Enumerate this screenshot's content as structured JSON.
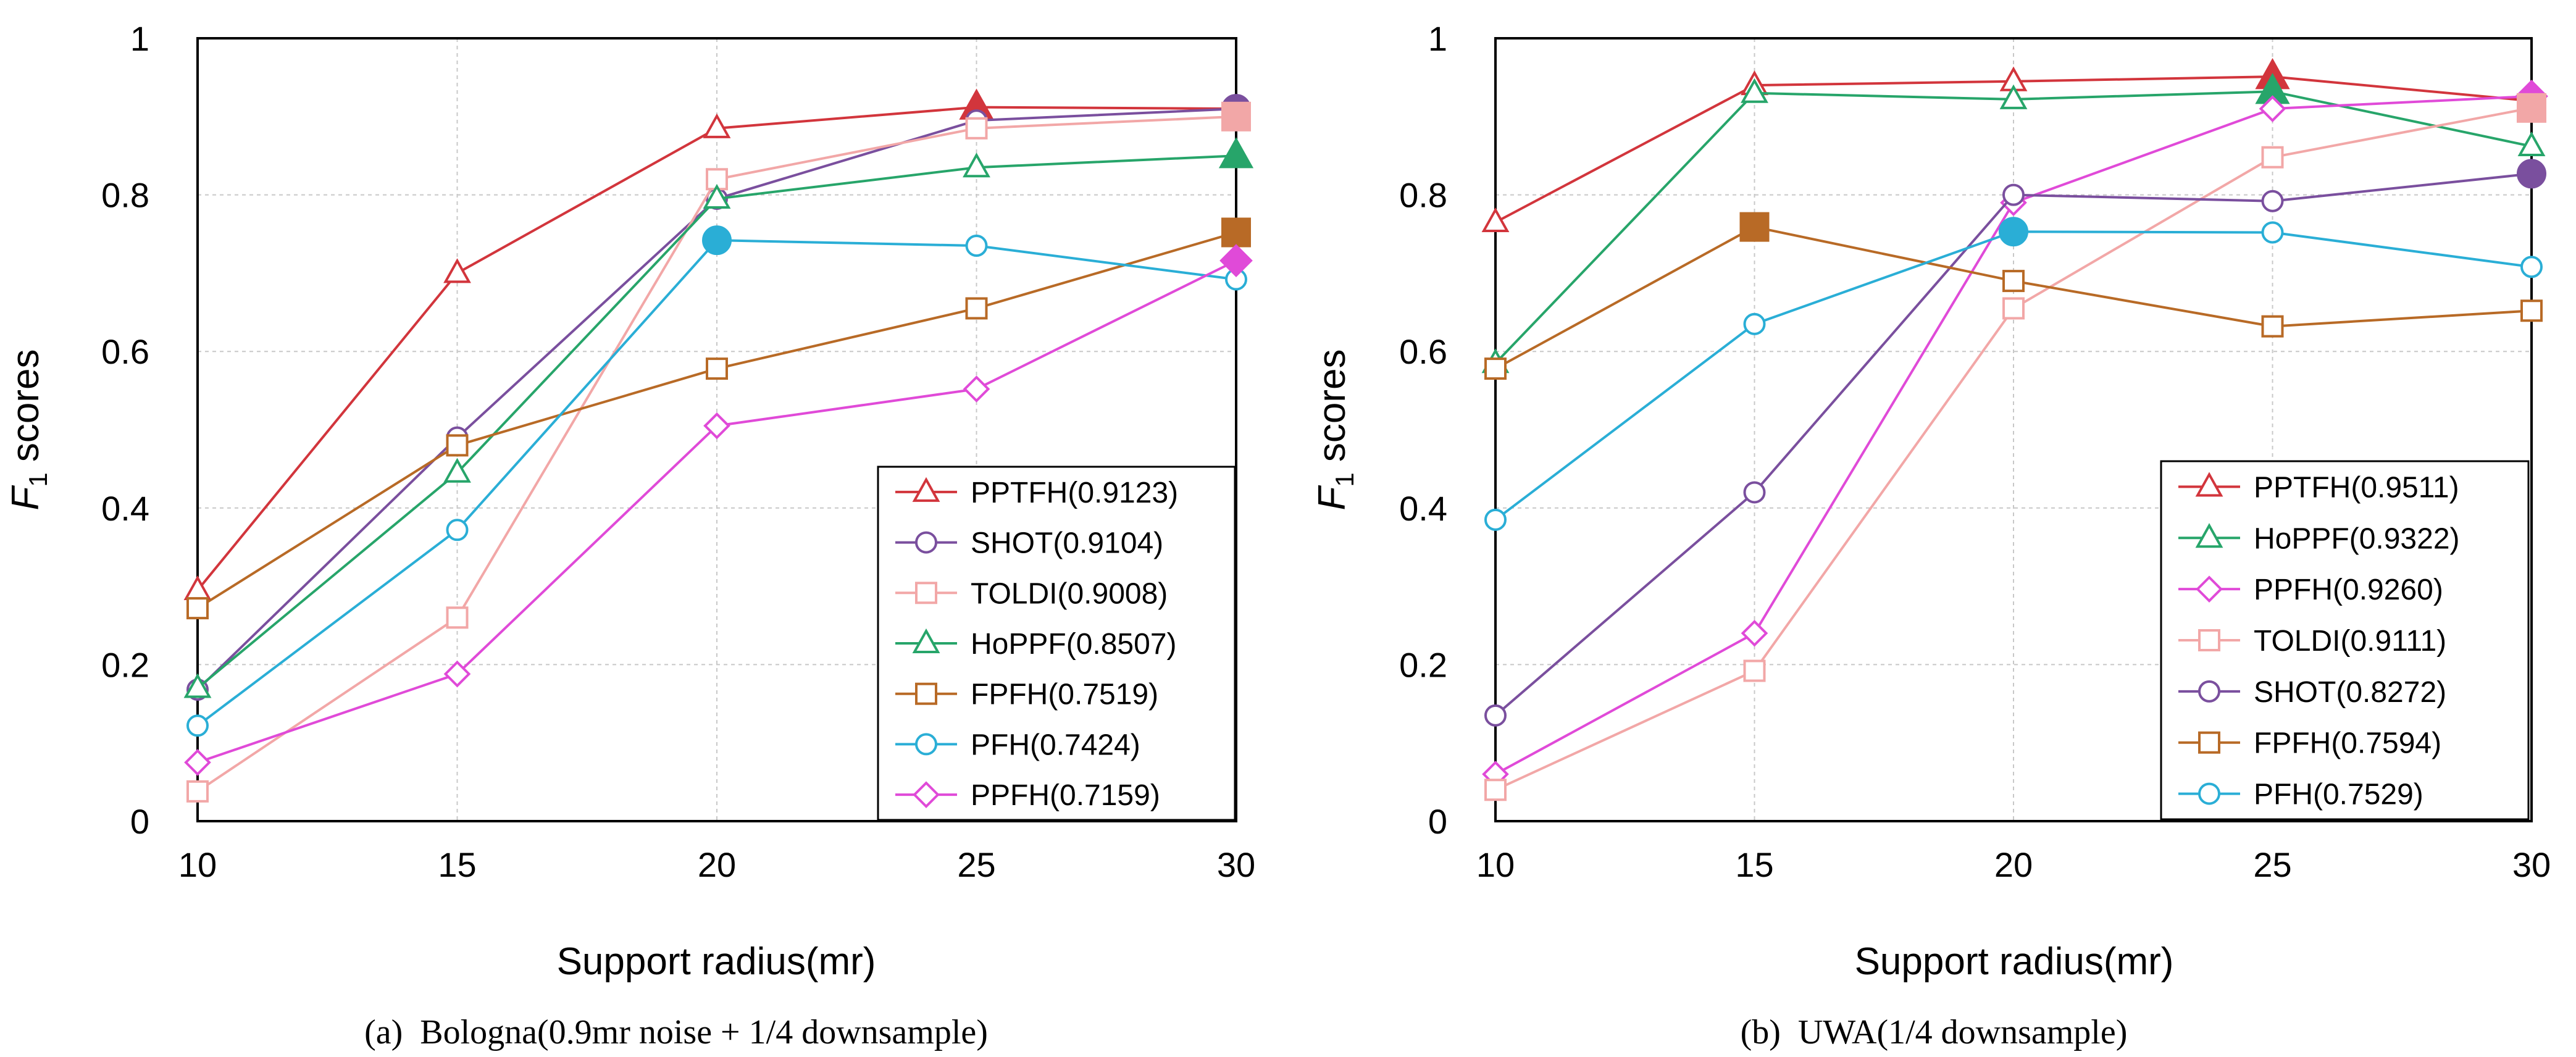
{
  "figure": {
    "panel_a_caption": "(a)  Bologna(0.9mr noise + 1/4 downsample)",
    "panel_b_caption": "(b)  UWA(1/4 downsample)"
  },
  "chart_data": [
    {
      "type": "line",
      "title": "",
      "xlabel": "Support radius(mr)",
      "ylabel_prefix": "F",
      "ylabel_sub": "1",
      "ylabel_suffix": " scores",
      "x": [
        10,
        15,
        20,
        25,
        30
      ],
      "xlim": [
        10,
        30
      ],
      "ylim": [
        0,
        1
      ],
      "xticks": [
        10,
        15,
        20,
        25,
        30
      ],
      "yticks": [
        0,
        0.2,
        0.4,
        0.6,
        0.8,
        1
      ],
      "ytick_labels": [
        "0",
        "0.2",
        "0.4",
        "0.6",
        "0.8",
        "1"
      ],
      "grid": true,
      "legend_position": "bottom-right",
      "series": [
        {
          "name": "PPTFH(0.9123)",
          "marker": "triangle",
          "color": "#d2353c",
          "best_index": 3,
          "values": [
            0.295,
            0.7,
            0.885,
            0.912,
            0.91
          ]
        },
        {
          "name": "SHOT(0.9104)",
          "marker": "circle",
          "color": "#7a4f9e",
          "best_index": 4,
          "values": [
            0.168,
            0.49,
            0.795,
            0.895,
            0.91
          ]
        },
        {
          "name": "TOLDI(0.9008)",
          "marker": "square",
          "color": "#f2a7a7",
          "best_index": 4,
          "values": [
            0.038,
            0.26,
            0.82,
            0.885,
            0.9
          ]
        },
        {
          "name": "HoPPF(0.8507)",
          "marker": "triangle",
          "color": "#27a56a",
          "best_index": 4,
          "values": [
            0.17,
            0.445,
            0.795,
            0.835,
            0.85
          ]
        },
        {
          "name": "FPFH(0.7519)",
          "marker": "square",
          "color": "#b86a26",
          "best_index": 4,
          "values": [
            0.272,
            0.48,
            0.578,
            0.655,
            0.752
          ]
        },
        {
          "name": "PFH(0.7424)",
          "marker": "circle",
          "color": "#2aaed6",
          "best_index": 2,
          "values": [
            0.122,
            0.372,
            0.742,
            0.735,
            0.692
          ]
        },
        {
          "name": "PPFH(0.7159)",
          "marker": "diamond",
          "color": "#e04ad8",
          "best_index": 4,
          "values": [
            0.075,
            0.188,
            0.505,
            0.552,
            0.716
          ]
        }
      ]
    },
    {
      "type": "line",
      "title": "",
      "xlabel": "Support radius(mr)",
      "ylabel_prefix": "F",
      "ylabel_sub": "1",
      "ylabel_suffix": " scores",
      "x": [
        10,
        15,
        20,
        25,
        30
      ],
      "xlim": [
        10,
        30
      ],
      "ylim": [
        0,
        1
      ],
      "xticks": [
        10,
        15,
        20,
        25,
        30
      ],
      "yticks": [
        0,
        0.2,
        0.4,
        0.6,
        0.8,
        1
      ],
      "ytick_labels": [
        "0",
        "0.2",
        "0.4",
        "0.6",
        "0.8",
        "1"
      ],
      "grid": true,
      "legend_position": "bottom-right",
      "series": [
        {
          "name": "PPTFH(0.9511)",
          "marker": "triangle",
          "color": "#d2353c",
          "best_index": 3,
          "values": [
            0.765,
            0.94,
            0.945,
            0.951,
            0.92
          ]
        },
        {
          "name": "HoPPF(0.9322)",
          "marker": "triangle",
          "color": "#27a56a",
          "best_index": 3,
          "values": [
            0.585,
            0.93,
            0.922,
            0.932,
            0.862
          ]
        },
        {
          "name": "PPFH(0.9260)",
          "marker": "diamond",
          "color": "#e04ad8",
          "best_index": 4,
          "values": [
            0.06,
            0.24,
            0.79,
            0.91,
            0.926
          ]
        },
        {
          "name": "TOLDI(0.9111)",
          "marker": "square",
          "color": "#f2a7a7",
          "best_index": 4,
          "values": [
            0.04,
            0.192,
            0.655,
            0.848,
            0.911
          ]
        },
        {
          "name": "SHOT(0.8272)",
          "marker": "circle",
          "color": "#7a4f9e",
          "best_index": 4,
          "values": [
            0.135,
            0.42,
            0.8,
            0.792,
            0.827
          ]
        },
        {
          "name": "FPFH(0.7594)",
          "marker": "square",
          "color": "#b86a26",
          "best_index": 1,
          "values": [
            0.578,
            0.759,
            0.69,
            0.632,
            0.652
          ]
        },
        {
          "name": "PFH(0.7529)",
          "marker": "circle",
          "color": "#2aaed6",
          "best_index": 2,
          "values": [
            0.385,
            0.635,
            0.753,
            0.752,
            0.708
          ]
        }
      ]
    }
  ]
}
